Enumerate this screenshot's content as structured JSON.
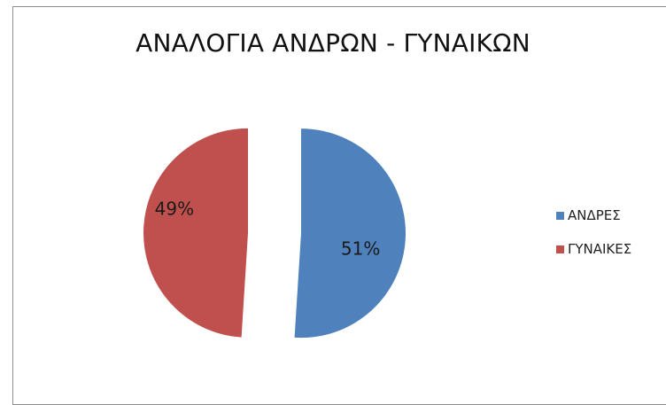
{
  "chart_data": {
    "type": "pie",
    "title": "ΑΝΑΛΟΓΙΑ ΑΝΔΡΩΝ - ΓΥΝΑΙΚΩΝ",
    "categories": [
      "ΑΝΔΡΕΣ",
      "ΓΥΝΑΙΚΕΣ"
    ],
    "values": [
      51,
      49
    ],
    "labels": [
      "51%",
      "49%"
    ],
    "colors": [
      "#4f81bd",
      "#c0504d"
    ],
    "legend_position": "right",
    "exploded": true
  }
}
